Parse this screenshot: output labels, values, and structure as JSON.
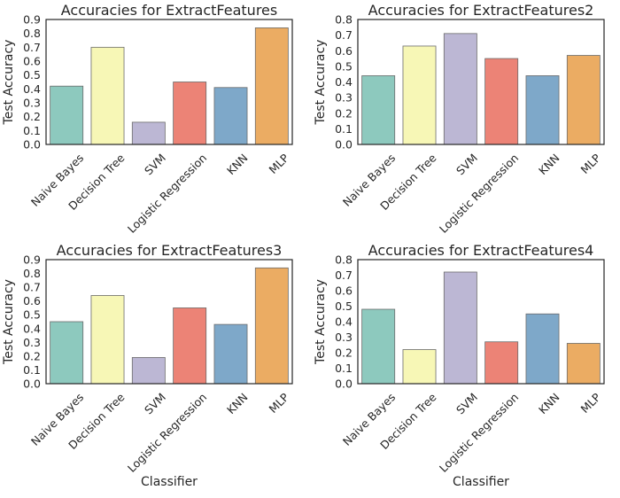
{
  "chart_data": [
    {
      "type": "bar",
      "title": "Accuracies for ExtractFeatures",
      "ylabel": "Test Accuracy",
      "xlabel": "",
      "ylim": [
        0,
        0.9
      ],
      "yticks": [
        "0.0",
        "0.1",
        "0.2",
        "0.3",
        "0.4",
        "0.5",
        "0.6",
        "0.7",
        "0.8",
        "0.9"
      ],
      "categories": [
        "Naive Bayes",
        "Decision Tree",
        "SVM",
        "Logistic Regression",
        "KNN",
        "MLP"
      ],
      "values": [
        0.42,
        0.7,
        0.16,
        0.45,
        0.41,
        0.84
      ]
    },
    {
      "type": "bar",
      "title": "Accuracies for ExtractFeatures2",
      "ylabel": "Test Accuracy",
      "xlabel": "",
      "ylim": [
        0,
        0.8
      ],
      "yticks": [
        "0.0",
        "0.1",
        "0.2",
        "0.3",
        "0.4",
        "0.5",
        "0.6",
        "0.7",
        "0.8"
      ],
      "categories": [
        "Naive Bayes",
        "Decision Tree",
        "SVM",
        "Logistic Regression",
        "KNN",
        "MLP"
      ],
      "values": [
        0.44,
        0.63,
        0.71,
        0.55,
        0.44,
        0.57
      ]
    },
    {
      "type": "bar",
      "title": "Accuracies for ExtractFeatures3",
      "ylabel": "Test Accuracy",
      "xlabel": "Classifier",
      "ylim": [
        0,
        0.9
      ],
      "yticks": [
        "0.0",
        "0.1",
        "0.2",
        "0.3",
        "0.4",
        "0.5",
        "0.6",
        "0.7",
        "0.8",
        "0.9"
      ],
      "categories": [
        "Naive Bayes",
        "Decision Tree",
        "SVM",
        "Logistic Regression",
        "KNN",
        "MLP"
      ],
      "values": [
        0.45,
        0.64,
        0.19,
        0.55,
        0.43,
        0.84
      ]
    },
    {
      "type": "bar",
      "title": "Accuracies for ExtractFeatures4",
      "ylabel": "Test Accuracy",
      "xlabel": "Classifier",
      "ylim": [
        0,
        0.8
      ],
      "yticks": [
        "0.0",
        "0.1",
        "0.2",
        "0.3",
        "0.4",
        "0.5",
        "0.6",
        "0.7",
        "0.8"
      ],
      "categories": [
        "Naive Bayes",
        "Decision Tree",
        "SVM",
        "Logistic Regression",
        "KNN",
        "MLP"
      ],
      "values": [
        0.48,
        0.22,
        0.72,
        0.27,
        0.45,
        0.26
      ]
    }
  ],
  "colors": [
    "#8dc9be",
    "#f7f7b6",
    "#bcb7d4",
    "#ec8376",
    "#7ea8c9",
    "#ebac63"
  ]
}
